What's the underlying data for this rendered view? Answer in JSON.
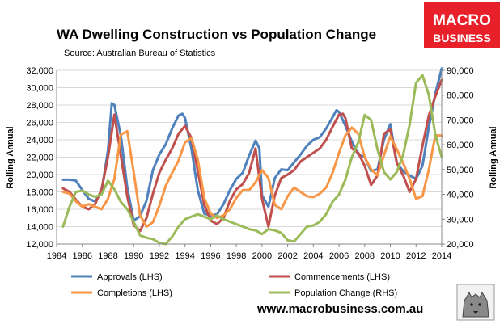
{
  "header": {
    "title": "WA Dwelling Construction vs Population Change",
    "source": "Source: Australian Bureau of Statistics"
  },
  "brand": {
    "line1": "MACRO",
    "line2": "BUSINESS",
    "url": "www.macrobusiness.com.au",
    "color": "#e8202a"
  },
  "chart_data": {
    "type": "line",
    "title": "WA Dwelling Construction vs Population Change",
    "y_left_label": "Rolling Annual",
    "y_right_label": "Rolling Annual",
    "x_range": [
      1984,
      2014
    ],
    "y_left_range": [
      12000,
      32000
    ],
    "y_right_range": [
      20000,
      90000
    ],
    "x_ticks": [
      "1984",
      "1986",
      "1988",
      "1990",
      "1992",
      "1994",
      "1996",
      "1998",
      "2000",
      "2002",
      "2004",
      "2006",
      "2008",
      "2010",
      "2012",
      "2014"
    ],
    "y_left_ticks": [
      "12,000",
      "14,000",
      "16,000",
      "18,000",
      "20,000",
      "22,000",
      "24,000",
      "26,000",
      "28,000",
      "30,000",
      "32,000"
    ],
    "y_right_ticks": [
      "20,000",
      "30,000",
      "40,000",
      "50,000",
      "60,000",
      "70,000",
      "80,000",
      "90,000"
    ],
    "grid": "horizontal",
    "legend_position": "bottom",
    "series": [
      {
        "name": "Approvals (LHS)",
        "axis": "left",
        "color": "#4f81bd",
        "x": [
          1984.5,
          1985,
          1985.5,
          1986,
          1986.5,
          1987,
          1987.5,
          1988,
          1988.3,
          1988.5,
          1989,
          1989.5,
          1990,
          1990.5,
          1991,
          1991.5,
          1992,
          1992.5,
          1993,
          1993.5,
          1993.8,
          1994,
          1994.5,
          1995,
          1995.5,
          1996,
          1996.5,
          1997,
          1997.5,
          1998,
          1998.5,
          1999,
          1999.5,
          1999.8,
          2000,
          2000.5,
          2001,
          2001.5,
          2002,
          2002.5,
          2003,
          2003.5,
          2004,
          2004.5,
          2005,
          2005.5,
          2005.8,
          2006,
          2006.5,
          2007,
          2007.5,
          2008,
          2008.5,
          2009,
          2009.5,
          2010,
          2010.5,
          2011,
          2011.5,
          2012,
          2012.5,
          2013,
          2013.5,
          2014
        ],
        "y": [
          19400,
          19400,
          19300,
          18200,
          17200,
          16900,
          18000,
          22800,
          28200,
          28000,
          24500,
          18500,
          14700,
          15200,
          17000,
          20500,
          22300,
          23500,
          25300,
          26800,
          27000,
          26500,
          23000,
          18200,
          15500,
          15300,
          15400,
          16600,
          18200,
          19500,
          20200,
          22200,
          23900,
          23000,
          17600,
          16300,
          19600,
          20600,
          20500,
          21400,
          22300,
          23300,
          24000,
          24300,
          25300,
          26600,
          27400,
          27200,
          25600,
          23800,
          22300,
          22000,
          20400,
          20600,
          24000,
          25800,
          21300,
          20400,
          19900,
          19500,
          21000,
          25500,
          29300,
          32200
        ]
      },
      {
        "name": "Commencements (LHS)",
        "axis": "left",
        "color": "#c0504d",
        "x": [
          1984.5,
          1985,
          1985.5,
          1986,
          1986.5,
          1987,
          1987.5,
          1988,
          1988.5,
          1989,
          1989.5,
          1990,
          1990.5,
          1991,
          1991.5,
          1992,
          1992.5,
          1993,
          1993.5,
          1994,
          1994.5,
          1995,
          1995.5,
          1996,
          1996.5,
          1997,
          1997.5,
          1998,
          1998.5,
          1999,
          1999.5,
          2000,
          2000.5,
          2001,
          2001.5,
          2002,
          2002.5,
          2003,
          2003.5,
          2004,
          2004.5,
          2005,
          2005.5,
          2006,
          2006.3,
          2006.5,
          2007,
          2007.5,
          2008,
          2008.5,
          2009,
          2009.5,
          2010,
          2010.5,
          2011,
          2011.5,
          2012,
          2012.5,
          2013,
          2013.5,
          2014
        ],
        "y": [
          18400,
          18000,
          17100,
          16300,
          16000,
          16600,
          18300,
          22000,
          26900,
          22200,
          17500,
          14200,
          13500,
          15000,
          17800,
          20200,
          21700,
          23000,
          24700,
          25600,
          24200,
          20400,
          16500,
          14700,
          14300,
          15000,
          17000,
          18300,
          18900,
          20200,
          23000,
          17200,
          14000,
          17600,
          19600,
          20000,
          20500,
          21500,
          22000,
          22500,
          23000,
          24000,
          25500,
          26900,
          27000,
          26500,
          23000,
          22500,
          21000,
          18800,
          19900,
          24700,
          25200,
          21300,
          19900,
          18000,
          19500,
          23300,
          26800,
          29000,
          30900
        ]
      },
      {
        "name": "Completions (LHS)",
        "axis": "left",
        "color": "#f79646",
        "x": [
          1984.5,
          1985,
          1985.5,
          1986,
          1986.5,
          1987,
          1987.5,
          1988,
          1988.5,
          1989,
          1989.5,
          1990,
          1990.5,
          1991,
          1991.5,
          1992,
          1992.5,
          1993,
          1993.5,
          1994,
          1994.5,
          1995,
          1995.5,
          1996,
          1996.5,
          1997,
          1997.5,
          1998,
          1998.5,
          1999,
          1999.5,
          2000,
          2000.5,
          2001,
          2001.5,
          2002,
          2002.5,
          2003,
          2003.5,
          2004,
          2004.5,
          2005,
          2005.5,
          2006,
          2006.5,
          2007,
          2007.5,
          2008,
          2008.5,
          2009,
          2009.5,
          2010,
          2010.5,
          2011,
          2011.5,
          2012,
          2012.5,
          2013,
          2013.5,
          2014
        ],
        "y": [
          18000,
          17800,
          16900,
          16300,
          16600,
          16300,
          16000,
          17200,
          19500,
          24600,
          25000,
          20300,
          15300,
          14000,
          14500,
          16400,
          18700,
          20200,
          21600,
          23700,
          24200,
          21700,
          17300,
          15500,
          15000,
          15300,
          16000,
          17300,
          18200,
          18200,
          19100,
          20500,
          19600,
          16500,
          16000,
          17500,
          18500,
          18000,
          17500,
          17400,
          17800,
          18500,
          20200,
          22500,
          24500,
          25400,
          24700,
          22000,
          20600,
          19900,
          22200,
          24400,
          22900,
          21300,
          19500,
          17200,
          17500,
          20600,
          24500,
          24500
        ]
      },
      {
        "name": "Population Change (RHS)",
        "axis": "right",
        "color": "#9bbb59",
        "x": [
          1984.5,
          1985,
          1985.5,
          1986,
          1986.5,
          1987,
          1987.5,
          1988,
          1988.5,
          1989,
          1989.5,
          1990,
          1990.5,
          1991,
          1991.5,
          1992,
          1992.5,
          1993,
          1993.5,
          1994,
          1994.5,
          1995,
          1995.5,
          1996,
          1996.5,
          1997,
          1997.5,
          1998,
          1998.5,
          1999,
          1999.5,
          2000,
          2000.5,
          2001,
          2001.5,
          2002,
          2002.5,
          2003,
          2003.5,
          2004,
          2004.5,
          2005,
          2005.5,
          2006,
          2006.5,
          2007,
          2007.5,
          2008,
          2008.5,
          2009,
          2009.5,
          2010,
          2010.5,
          2011,
          2011.5,
          2012,
          2012.5,
          2013,
          2013.5,
          2014
        ],
        "y": [
          27000,
          35000,
          41000,
          41500,
          40000,
          39000,
          40000,
          45500,
          42000,
          37000,
          34000,
          29000,
          23500,
          22500,
          22000,
          20500,
          20000,
          23000,
          27000,
          30000,
          31000,
          32000,
          31000,
          30000,
          31500,
          30000,
          29000,
          28000,
          27000,
          26000,
          25500,
          24000,
          26000,
          25500,
          24500,
          21500,
          21000,
          24000,
          27000,
          27500,
          29000,
          32000,
          37000,
          40000,
          46000,
          55000,
          61000,
          72000,
          70000,
          58000,
          49000,
          46000,
          49000,
          56000,
          68000,
          85000,
          88000,
          80000,
          64000,
          55000
        ]
      }
    ]
  }
}
